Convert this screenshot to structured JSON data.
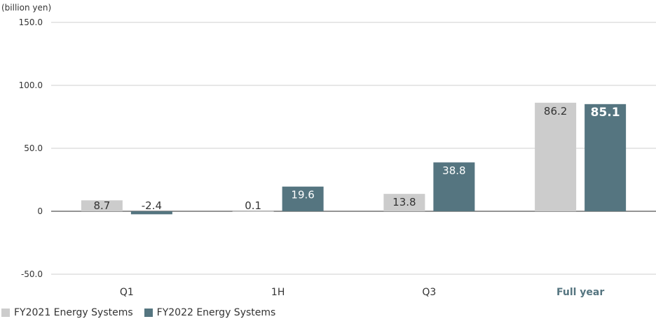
{
  "chart_data": {
    "type": "bar",
    "unit_label": "(billion yen)",
    "categories": [
      "Q1",
      "1H",
      "Q3",
      "Full year"
    ],
    "highlight_category": "Full year",
    "ylim": [
      -50,
      150
    ],
    "yticks": [
      -50,
      0,
      50,
      100,
      150
    ],
    "ytick_labels": [
      "-50.0",
      "0",
      "50.0",
      "100.0",
      "150.0"
    ],
    "grid": true,
    "legend_position": "bottom-left",
    "series": [
      {
        "name": "FY2021 Energy Systems",
        "color": "#cccccc",
        "label_color": "#333333",
        "values": [
          8.7,
          0.1,
          13.8,
          86.2
        ],
        "labels": [
          "8.7",
          "0.1",
          "13.8",
          "86.2"
        ]
      },
      {
        "name": "FY2022 Energy Systems",
        "color": "#557580",
        "label_color": "#ffffff",
        "values": [
          -2.4,
          19.6,
          38.8,
          85.1
        ],
        "labels": [
          "-2.4",
          "19.6",
          "38.8",
          "85.1"
        ]
      }
    ]
  }
}
